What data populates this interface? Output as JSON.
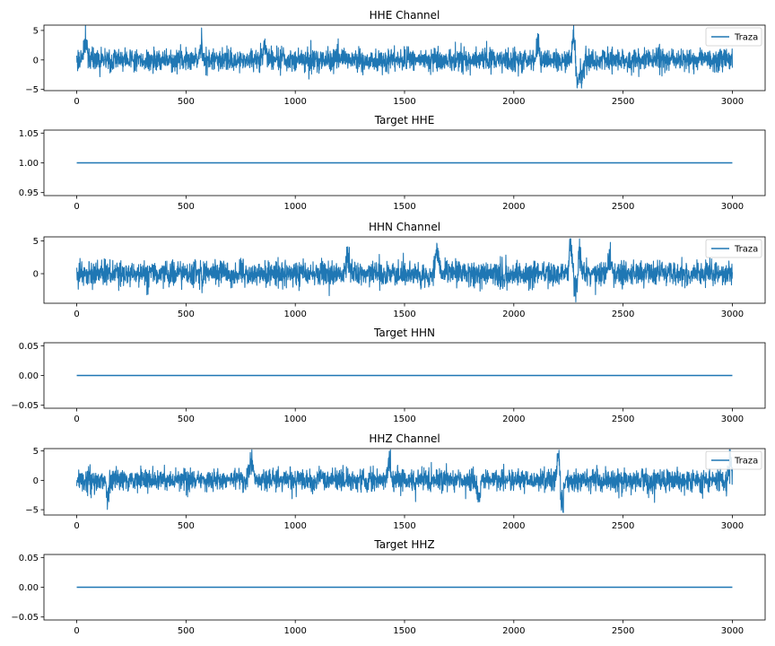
{
  "figure": {
    "line_color": "#1f77b4",
    "axes_color": "#000000",
    "background": "#ffffff"
  },
  "chart_data": [
    {
      "type": "line",
      "title": "HHE Channel",
      "xlabel": "",
      "ylabel": "",
      "xlim": [
        -150,
        3150
      ],
      "ylim": [
        -5.2,
        5.9
      ],
      "xticks": [
        0,
        500,
        1000,
        1500,
        2000,
        2500,
        3000
      ],
      "yticks": [
        -5,
        0,
        5
      ],
      "ytick_labels": [
        "−5",
        "0",
        "5"
      ],
      "legend": {
        "label": "Traza",
        "position": "upper right"
      },
      "series": [
        {
          "kind": "seismic_trace",
          "x_range": [
            0,
            3000
          ],
          "n_points": 3000,
          "baseline_std": 0.9,
          "min": -4.8,
          "max": 5.8,
          "bursts": [
            {
              "x": 40,
              "amp": 3.6
            },
            {
              "x": 570,
              "amp": 2.6
            },
            {
              "x": 860,
              "amp": 3.2
            },
            {
              "x": 2110,
              "amp": 3.2
            },
            {
              "x": 2275,
              "amp": 5.8
            },
            {
              "x": 2290,
              "amp": -4.8
            },
            {
              "x": 2310,
              "amp": -3.4
            }
          ]
        }
      ]
    },
    {
      "type": "line",
      "title": "Target HHE",
      "xlabel": "",
      "ylabel": "",
      "xlim": [
        -150,
        3150
      ],
      "ylim": [
        0.945,
        1.055
      ],
      "xticks": [
        0,
        500,
        1000,
        1500,
        2000,
        2500,
        3000
      ],
      "yticks": [
        0.95,
        1.0,
        1.05
      ],
      "ytick_labels": [
        "0.95",
        "1.00",
        "1.05"
      ],
      "series": [
        {
          "kind": "constant",
          "x": [
            0,
            3000
          ],
          "y": [
            1.0,
            1.0
          ]
        }
      ]
    },
    {
      "type": "line",
      "title": "HHN Channel",
      "xlabel": "",
      "ylabel": "",
      "xlim": [
        -150,
        3150
      ],
      "ylim": [
        -4.5,
        5.6
      ],
      "xticks": [
        0,
        500,
        1000,
        1500,
        2000,
        2500,
        3000
      ],
      "yticks": [
        0,
        5
      ],
      "ytick_labels": [
        "0",
        "5"
      ],
      "legend": {
        "label": "Traza",
        "position": "upper right"
      },
      "series": [
        {
          "kind": "seismic_trace",
          "x_range": [
            0,
            3000
          ],
          "n_points": 3000,
          "baseline_std": 0.9,
          "min": -4.3,
          "max": 5.3,
          "bursts": [
            {
              "x": 1240,
              "amp": 3.1
            },
            {
              "x": 1650,
              "amp": 4.4
            },
            {
              "x": 2260,
              "amp": 5.3
            },
            {
              "x": 2285,
              "amp": -4.3
            },
            {
              "x": 2300,
              "amp": 4.5
            },
            {
              "x": 2440,
              "amp": 3.0
            }
          ]
        }
      ]
    },
    {
      "type": "line",
      "title": "Target HHN",
      "xlabel": "",
      "ylabel": "",
      "xlim": [
        -150,
        3150
      ],
      "ylim": [
        -0.055,
        0.055
      ],
      "xticks": [
        0,
        500,
        1000,
        1500,
        2000,
        2500,
        3000
      ],
      "yticks": [
        -0.05,
        0.0,
        0.05
      ],
      "ytick_labels": [
        "−0.05",
        "0.00",
        "0.05"
      ],
      "series": [
        {
          "kind": "constant",
          "x": [
            0,
            3000
          ],
          "y": [
            0.0,
            0.0
          ]
        }
      ]
    },
    {
      "type": "line",
      "title": "HHZ Channel",
      "xlabel": "",
      "ylabel": "",
      "xlim": [
        -150,
        3150
      ],
      "ylim": [
        -5.9,
        5.4
      ],
      "xticks": [
        0,
        500,
        1000,
        1500,
        2000,
        2500,
        3000
      ],
      "yticks": [
        -5,
        0,
        5
      ],
      "ytick_labels": [
        "−5",
        "0",
        "5"
      ],
      "legend": {
        "label": "Traza",
        "position": "upper right"
      },
      "series": [
        {
          "kind": "seismic_trace",
          "x_range": [
            0,
            3000
          ],
          "n_points": 3000,
          "baseline_std": 0.9,
          "min": -5.5,
          "max": 5.2,
          "bursts": [
            {
              "x": 140,
              "amp": -3.2
            },
            {
              "x": 800,
              "amp": 3.8
            },
            {
              "x": 1430,
              "amp": 3.4
            },
            {
              "x": 1840,
              "amp": -3.5
            },
            {
              "x": 2205,
              "amp": 5.2
            },
            {
              "x": 2220,
              "amp": -5.5
            },
            {
              "x": 2990,
              "amp": 4.0
            }
          ]
        }
      ]
    },
    {
      "type": "line",
      "title": "Target HHZ",
      "xlabel": "",
      "ylabel": "",
      "xlim": [
        -150,
        3150
      ],
      "ylim": [
        -0.055,
        0.055
      ],
      "xticks": [
        0,
        500,
        1000,
        1500,
        2000,
        2500,
        3000
      ],
      "yticks": [
        -0.05,
        0.0,
        0.05
      ],
      "ytick_labels": [
        "−0.05",
        "0.00",
        "0.05"
      ],
      "series": [
        {
          "kind": "constant",
          "x": [
            0,
            3000
          ],
          "y": [
            0.0,
            0.0
          ]
        }
      ]
    }
  ]
}
